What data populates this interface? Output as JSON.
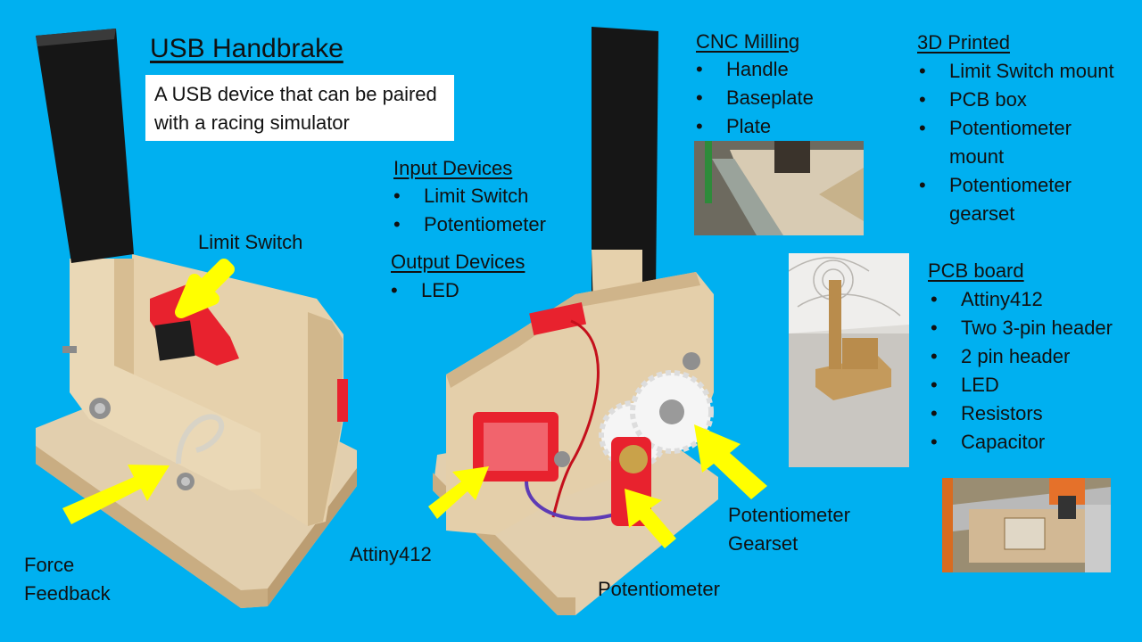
{
  "title": "USB Handbrake",
  "subtitle": "A USB device that can be paired with a racing simulator",
  "bullet": "•",
  "cnc": {
    "heading": "CNC Milling",
    "items": [
      "Handle",
      "Baseplate",
      "Plate"
    ]
  },
  "printed": {
    "heading": "3D Printed",
    "items": [
      "Limit Switch mount",
      "PCB box",
      "Potentiometer",
      "mount",
      "Potentiometer",
      "gearset"
    ]
  },
  "input": {
    "heading": "Input Devices",
    "items": [
      "Limit Switch",
      "Potentiometer"
    ]
  },
  "output": {
    "heading": "Output Devices",
    "items": [
      "LED"
    ]
  },
  "pcb": {
    "heading": "PCB board",
    "items": [
      "Attiny412",
      "Two 3-pin header",
      "2 pin header",
      "LED",
      "Resistors",
      "Capacitor"
    ]
  },
  "labels": {
    "limit_switch": "Limit Switch",
    "force_feedback_1": "Force",
    "force_feedback_2": "Feedback",
    "attiny": "Attiny412",
    "potentiometer": "Potentiometer",
    "gearset_1": "Potentiometer",
    "gearset_2": "Gearset"
  },
  "colors": {
    "background": "#00b0f0",
    "arrow": "#ffff00",
    "print_red": "#e8222e",
    "plywood": "#dfc9a3"
  }
}
